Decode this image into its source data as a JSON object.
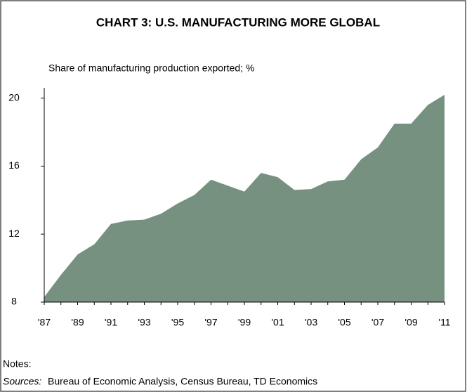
{
  "chart_data": {
    "type": "area",
    "title": "CHART 3: U.S. MANUFACTURING MORE GLOBAL",
    "ylabel": "Share of manufacturing production exported; %",
    "categories": [
      "'87",
      null,
      "'89",
      null,
      "'91",
      null,
      "'93",
      null,
      "'95",
      null,
      "'97",
      null,
      "'99",
      null,
      "'01",
      null,
      "'03",
      null,
      "'05",
      null,
      "'07",
      null,
      "'09",
      null,
      "'11"
    ],
    "values": [
      8.3,
      9.6,
      10.8,
      11.4,
      12.6,
      12.8,
      12.85,
      13.2,
      13.8,
      14.3,
      15.2,
      14.85,
      14.5,
      15.6,
      15.35,
      14.6,
      14.65,
      15.1,
      15.2,
      16.4,
      17.1,
      18.5,
      18.5,
      19.6,
      20.2
    ],
    "color": "#76917f",
    "ylim": [
      8,
      20.4
    ],
    "yticks": [
      8,
      12,
      16,
      20
    ],
    "grid": false,
    "notes": "Notes:",
    "sources_label": "Sources:",
    "sources": "Bureau of Economic Analysis, Census Bureau, TD Economics"
  }
}
